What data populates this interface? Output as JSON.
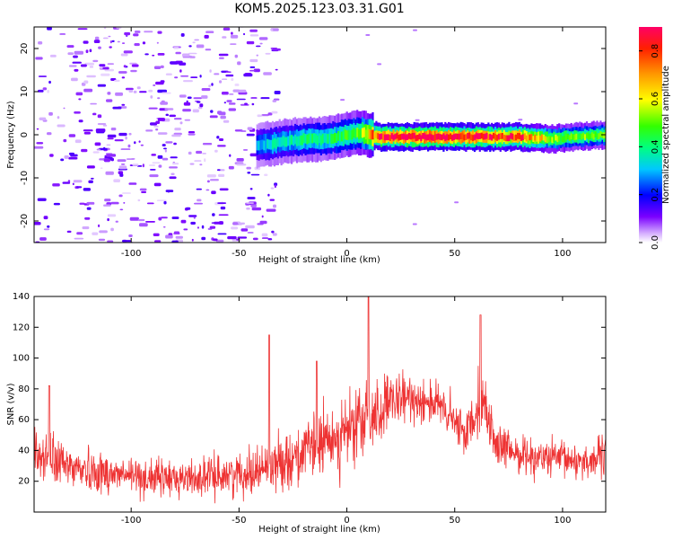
{
  "figure": {
    "title": "KOM5.2025.123.03.31.G01"
  },
  "chart_data": [
    {
      "type": "heatmap",
      "title": "KOM5.2025.123.03.31.G01",
      "xlabel": "Height of straight line (km)",
      "ylabel": "Frequency (Hz)",
      "xlim": [
        -145,
        120
      ],
      "ylim": [
        -25,
        25
      ],
      "x_ticks": [
        -100,
        -50,
        0,
        50,
        100
      ],
      "y_ticks": [
        -20,
        -10,
        0,
        10,
        20
      ],
      "x_tick_labels": [
        "-100",
        "-50",
        "0",
        "50",
        "100"
      ],
      "y_tick_labels": [
        "-20",
        "-10",
        "0",
        "10",
        "20"
      ],
      "colorbar": {
        "label": "Normalized spectral amplitude",
        "range": [
          0,
          0.9
        ],
        "ticks": [
          0.0,
          0.2,
          0.4,
          0.6,
          0.8
        ],
        "tick_labels": [
          "0.0",
          "0.2",
          "0.4",
          "0.6",
          "0.8"
        ],
        "colormap": "rainbow"
      },
      "features": {
        "noise_region_x": [
          -145,
          -40
        ],
        "noise_amplitude": 0.12,
        "signal_track": [
          {
            "x": -42,
            "freq": -2.5,
            "amp": 0.3
          },
          {
            "x": -35,
            "freq": -2.0,
            "amp": 0.35
          },
          {
            "x": -28,
            "freq": -1.5,
            "amp": 0.35
          },
          {
            "x": -20,
            "freq": -1.0,
            "amp": 0.4
          },
          {
            "x": -10,
            "freq": -1.0,
            "amp": 0.4
          },
          {
            "x": 0,
            "freq": 0.0,
            "amp": 0.45
          },
          {
            "x": 6,
            "freq": 0.5,
            "amp": 0.5
          },
          {
            "x": 15,
            "freq": -0.5,
            "amp": 0.85
          },
          {
            "x": 40,
            "freq": -0.5,
            "amp": 0.9
          },
          {
            "x": 60,
            "freq": -0.5,
            "amp": 0.85
          },
          {
            "x": 80,
            "freq": -0.5,
            "amp": 0.8
          },
          {
            "x": 95,
            "freq": -1.0,
            "amp": 0.55
          },
          {
            "x": 105,
            "freq": -0.5,
            "amp": 0.5
          },
          {
            "x": 120,
            "freq": 0.0,
            "amp": 0.5
          }
        ]
      },
      "grid": false
    },
    {
      "type": "line",
      "xlabel": "Height of straight line (km)",
      "ylabel": "SNR (v/v)",
      "xlim": [
        -145,
        120
      ],
      "ylim": [
        0,
        140
      ],
      "x_ticks": [
        -100,
        -50,
        0,
        50,
        100
      ],
      "y_ticks": [
        20,
        40,
        60,
        80,
        100,
        120,
        140
      ],
      "x_tick_labels": [
        "-100",
        "-50",
        "0",
        "50",
        "100"
      ],
      "y_tick_labels": [
        "20",
        "40",
        "60",
        "80",
        "100",
        "120",
        "140"
      ],
      "series": [
        {
          "color": "#ee3333",
          "envelope": {
            "x": [
              -145,
              -130,
              -110,
              -90,
              -70,
              -50,
              -40,
              -30,
              -20,
              -10,
              0,
              10,
              20,
              30,
              40,
              50,
              55,
              62,
              70,
              80,
              90,
              100,
              110,
              120
            ],
            "mean": [
              38,
              30,
              25,
              22,
              22,
              25,
              28,
              33,
              38,
              45,
              52,
              60,
              70,
              74,
              72,
              58,
              50,
              75,
              42,
              38,
              35,
              34,
              33,
              36
            ],
            "spread": [
              15,
              14,
              12,
              11,
              11,
              12,
              14,
              16,
              18,
              20,
              22,
              24,
              16,
              14,
              14,
              14,
              12,
              20,
              12,
              11,
              11,
              11,
              11,
              12
            ]
          },
          "spikes": [
            {
              "x": -138,
              "y": 82
            },
            {
              "x": -36,
              "y": 115
            },
            {
              "x": -14,
              "y": 98
            },
            {
              "x": 10,
              "y": 140
            },
            {
              "x": 62,
              "y": 128
            }
          ]
        }
      ],
      "grid": false
    }
  ]
}
